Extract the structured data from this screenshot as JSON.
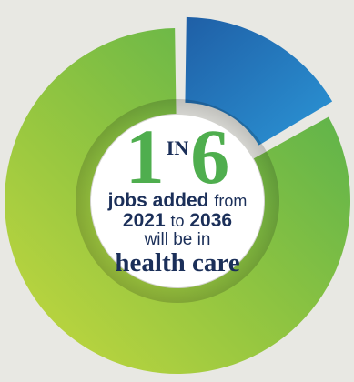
{
  "chart_data": {
    "type": "pie",
    "style": "donut",
    "slices": [
      {
        "fraction": 0.1667,
        "color": "#1f7fc4",
        "exploded": true
      },
      {
        "fraction": 0.8333,
        "color": "#6dbb4f"
      }
    ]
  },
  "center": {
    "numerator": "1",
    "in_word": "IN",
    "denominator": "6",
    "line1_bold": "jobs added",
    "line1_rest": "from",
    "line2_a": "2021",
    "line2_mid": "to",
    "line2_b": "2036",
    "line3": "will be in",
    "line4": "health care"
  },
  "colors": {
    "background": "#e8e8e3",
    "green_accent": "#4fae4e",
    "navy_text": "#1b2f59",
    "blue_slice": "#1f7fc4"
  }
}
